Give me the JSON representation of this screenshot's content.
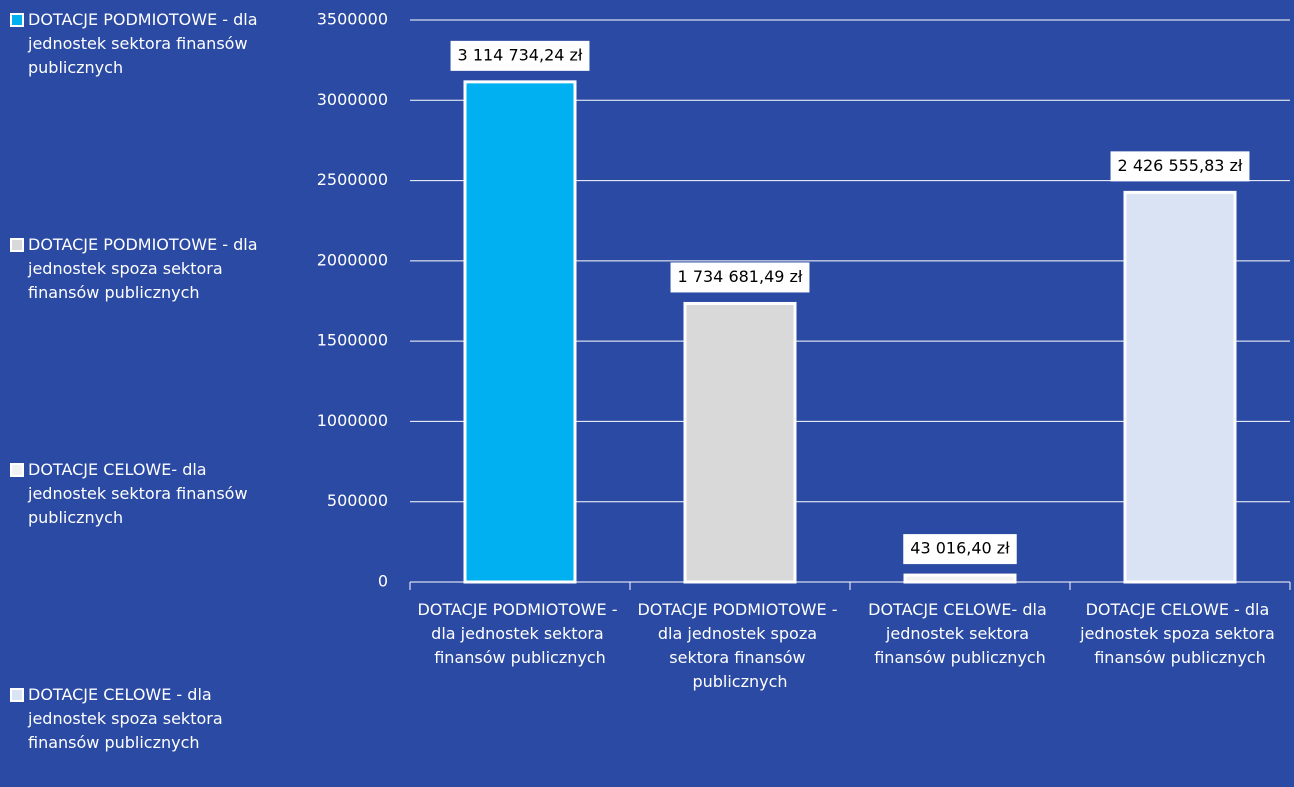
{
  "chart_data": {
    "type": "bar",
    "categories": [
      "DOTACJE PODMIOTOWE - dla jednostek sektora finansów publicznych",
      "DOTACJE PODMIOTOWE - dla jednostek spoza sektora finansów publicznych",
      "DOTACJE CELOWE- dla jednostek sektora finansów publicznych",
      "DOTACJE CELOWE - dla jednostek spoza sektora finansów publicznych"
    ],
    "values": [
      3114734.24,
      1734681.49,
      43016.4,
      2426555.83
    ],
    "value_labels": [
      "3 114 734,24 zł",
      "1 734 681,49 zł",
      "43 016,40 zł",
      "2 426 555,83 zł"
    ],
    "colors": [
      "#00b0f0",
      "#d9d9d9",
      "#f2f2f2",
      "#dae3f3"
    ],
    "ylim": [
      0,
      3500000
    ],
    "yticks": [
      0,
      500000,
      1000000,
      1500000,
      2000000,
      2500000,
      3000000,
      3500000
    ],
    "grid": true,
    "legend": "left"
  }
}
